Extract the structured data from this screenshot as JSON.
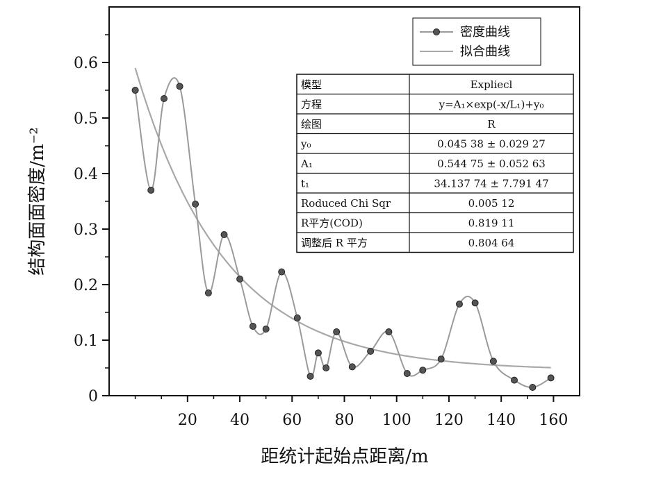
{
  "chart_data": {
    "type": "scatter",
    "xlabel": "距统计起始点距离/m",
    "ylabel": "结构面面密度/m⁻²",
    "xlim": [
      -10,
      170
    ],
    "ylim": [
      0,
      0.7
    ],
    "xticks": [
      20,
      40,
      60,
      80,
      100,
      120,
      140,
      160
    ],
    "xtick_labels": [
      "20",
      "40",
      "60",
      "80",
      "100",
      "120",
      "140",
      "160"
    ],
    "yticks": [
      0,
      0.1,
      0.2,
      0.3,
      0.4,
      0.5,
      0.6
    ],
    "ytick_labels": [
      "0",
      "0.1",
      "0.2",
      "0.3",
      "0.4",
      "0.5",
      "0.6"
    ],
    "series": [
      {
        "name": "密度曲线",
        "style": "smooth line with markers",
        "color": "#9a9a9a",
        "marker_color": "#555555",
        "x": [
          0,
          6,
          11,
          17,
          23,
          28,
          34,
          40,
          45,
          50,
          56,
          62,
          67,
          70,
          73,
          77,
          83,
          90,
          97,
          104,
          110,
          117,
          124,
          130,
          137,
          145,
          152,
          159
        ],
        "y": [
          0.55,
          0.37,
          0.535,
          0.557,
          0.345,
          0.185,
          0.29,
          0.21,
          0.125,
          0.12,
          0.223,
          0.14,
          0.035,
          0.077,
          0.05,
          0.115,
          0.052,
          0.08,
          0.115,
          0.04,
          0.046,
          0.066,
          0.165,
          0.167,
          0.062,
          0.028,
          0.015,
          0.032
        ]
      },
      {
        "name": "拟合曲线",
        "style": "line",
        "color": "#a8a8a8",
        "model": {
          "y0": 0.04538,
          "A1": 0.54475,
          "t1": 34.13774
        }
      }
    ],
    "grid": false,
    "legend_position": "top-right"
  },
  "fit_table": [
    {
      "key": "模型",
      "value": "Expliecl"
    },
    {
      "key": "方程",
      "value": "y=A₁×exp(-x/L₁)+y₀"
    },
    {
      "key": "绘图",
      "value": "R"
    },
    {
      "key": "y₀",
      "value": "0.045 38 ± 0.029 27"
    },
    {
      "key": "A₁",
      "value": "0.544 75 ± 0.052 63"
    },
    {
      "key": "t₁",
      "value": "34.137 74 ± 7.791 47"
    },
    {
      "key": "Roduced Chi Sqr",
      "value": "0.005 12"
    },
    {
      "key": "R平方(COD)",
      "value": "0.819 11"
    },
    {
      "key": "调整后 R 平方",
      "value": "0.804 64"
    }
  ]
}
